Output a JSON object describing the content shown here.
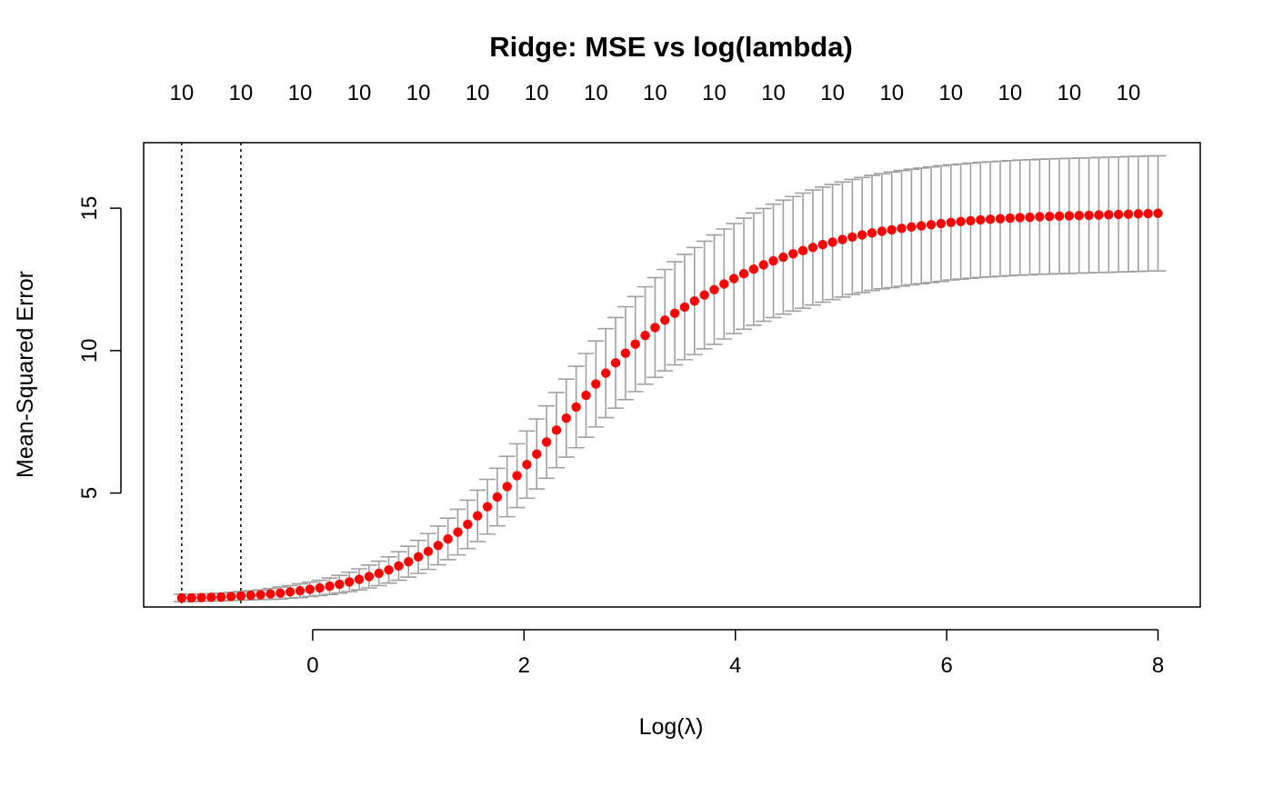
{
  "chart_data": {
    "type": "scatter",
    "title": "Ridge: MSE vs log(lambda)",
    "xlabel": "Log(λ)",
    "ylabel": "Mean-Squared Error",
    "xlim": [
      -1.6,
      8.4
    ],
    "ylim": [
      1.0,
      17.3
    ],
    "x_ticks": [
      0,
      2,
      4,
      6,
      8
    ],
    "y_ticks": [
      5,
      10,
      15
    ],
    "top_ticks": {
      "label": "10",
      "x": [
        -1.24,
        -0.68,
        -0.12,
        0.44,
        1.0,
        1.56,
        2.12,
        2.68,
        3.24,
        3.8,
        4.36,
        4.92,
        5.48,
        6.04,
        6.6,
        7.16,
        7.72
      ]
    },
    "vlines_x": [
      -1.24,
      -0.68
    ],
    "vline_style": "dotted",
    "point_color": "#ff0000",
    "errorbar_color": "#a0a0a0",
    "series": [
      {
        "x_range": [
          -1.24,
          8.0
        ],
        "n_points": 100,
        "mse": [
          1.32,
          1.32,
          1.33,
          1.34,
          1.35,
          1.37,
          1.39,
          1.41,
          1.43,
          1.46,
          1.49,
          1.53,
          1.57,
          1.62,
          1.67,
          1.73,
          1.8,
          1.88,
          1.97,
          2.07,
          2.18,
          2.3,
          2.44,
          2.59,
          2.76,
          2.95,
          3.16,
          3.39,
          3.63,
          3.9,
          4.2,
          4.52,
          4.86,
          5.23,
          5.61,
          6.0,
          6.37,
          6.79,
          7.21,
          7.63,
          8.02,
          8.43,
          8.83,
          9.21,
          9.57,
          9.91,
          10.23,
          10.53,
          10.81,
          11.07,
          11.31,
          11.53,
          11.74,
          11.95,
          12.14,
          12.34,
          12.53,
          12.7,
          12.86,
          13.01,
          13.15,
          13.28,
          13.4,
          13.51,
          13.62,
          13.72,
          13.81,
          13.9,
          13.99,
          14.06,
          14.13,
          14.19,
          14.24,
          14.29,
          14.34,
          14.38,
          14.42,
          14.46,
          14.5,
          14.53,
          14.56,
          14.59,
          14.61,
          14.63,
          14.65,
          14.67,
          14.68,
          14.7,
          14.71,
          14.72,
          14.73,
          14.74,
          14.75,
          14.76,
          14.77,
          14.78,
          14.79,
          14.8,
          14.81,
          14.82
        ],
        "upper": [
          1.45,
          1.45,
          1.46,
          1.47,
          1.49,
          1.51,
          1.54,
          1.57,
          1.6,
          1.65,
          1.7,
          1.75,
          1.81,
          1.87,
          1.94,
          2.02,
          2.11,
          2.22,
          2.34,
          2.47,
          2.61,
          2.76,
          2.94,
          3.13,
          3.34,
          3.58,
          3.84,
          4.12,
          4.43,
          4.75,
          5.1,
          5.48,
          5.87,
          6.29,
          6.73,
          7.18,
          7.6,
          8.06,
          8.53,
          9.0,
          9.45,
          9.9,
          10.34,
          10.77,
          11.16,
          11.54,
          11.9,
          12.24,
          12.56,
          12.85,
          13.12,
          13.38,
          13.62,
          13.84,
          14.06,
          14.27,
          14.46,
          14.65,
          14.83,
          14.99,
          15.14,
          15.28,
          15.41,
          15.53,
          15.64,
          15.74,
          15.83,
          15.92,
          16.01,
          16.08,
          16.15,
          16.21,
          16.27,
          16.32,
          16.37,
          16.41,
          16.45,
          16.49,
          16.52,
          16.55,
          16.58,
          16.61,
          16.63,
          16.65,
          16.67,
          16.69,
          16.7,
          16.72,
          16.73,
          16.74,
          16.75,
          16.76,
          16.77,
          16.78,
          16.79,
          16.8,
          16.81,
          16.82,
          16.83,
          16.84
        ],
        "lower": [
          1.19,
          1.19,
          1.2,
          1.21,
          1.21,
          1.23,
          1.24,
          1.25,
          1.26,
          1.27,
          1.28,
          1.31,
          1.33,
          1.37,
          1.4,
          1.44,
          1.49,
          1.54,
          1.6,
          1.67,
          1.75,
          1.84,
          1.94,
          2.05,
          2.18,
          2.32,
          2.48,
          2.66,
          2.83,
          3.05,
          3.3,
          3.56,
          3.85,
          4.17,
          4.49,
          4.82,
          5.14,
          5.52,
          5.89,
          6.26,
          6.59,
          6.96,
          7.32,
          7.65,
          7.98,
          8.28,
          8.56,
          8.82,
          9.06,
          9.29,
          9.5,
          9.68,
          9.86,
          10.06,
          10.22,
          10.41,
          10.6,
          10.75,
          10.89,
          11.03,
          11.16,
          11.28,
          11.39,
          11.49,
          11.6,
          11.7,
          11.79,
          11.88,
          11.97,
          12.04,
          12.11,
          12.17,
          12.21,
          12.26,
          12.31,
          12.35,
          12.39,
          12.43,
          12.48,
          12.51,
          12.54,
          12.57,
          12.59,
          12.61,
          12.63,
          12.65,
          12.66,
          12.68,
          12.69,
          12.7,
          12.71,
          12.72,
          12.73,
          12.74,
          12.75,
          12.76,
          12.77,
          12.78,
          12.79,
          12.8
        ]
      }
    ]
  }
}
